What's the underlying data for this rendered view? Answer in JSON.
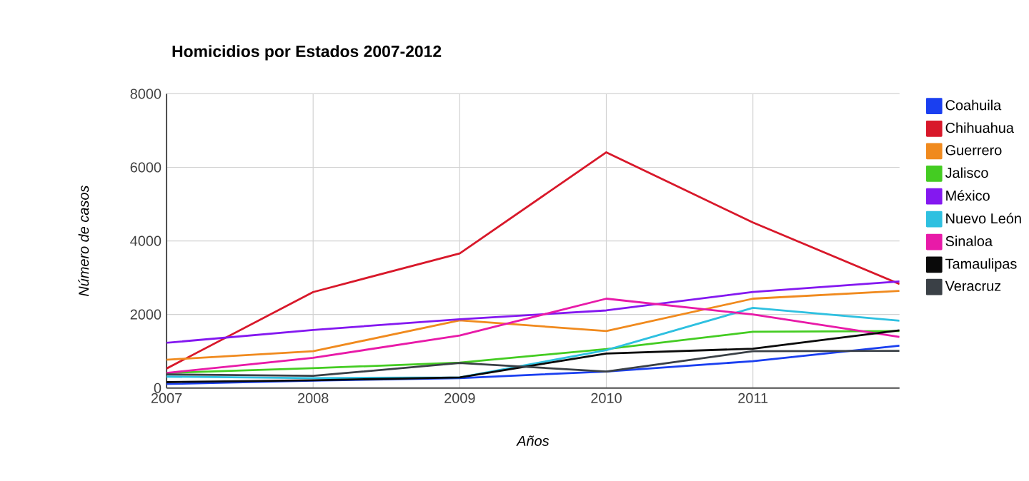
{
  "chart_data": {
    "type": "line",
    "title": "Homicidios por Estados 2007-2012",
    "xlabel": "Años",
    "ylabel": "Número de casos",
    "x": [
      2007,
      2008,
      2009,
      2010,
      2011,
      2012
    ],
    "xlim": [
      2007,
      2012
    ],
    "xticks": [
      2007,
      2008,
      2009,
      2010,
      2011
    ],
    "ylim": [
      0,
      8000
    ],
    "yticks": [
      0,
      2000,
      4000,
      6000,
      8000
    ],
    "grid": true,
    "legend": "top right",
    "series": [
      {
        "name": "Coahuila",
        "color": "#1a3ff0",
        "values": [
          110,
          200,
          270,
          450,
          730,
          1150
        ]
      },
      {
        "name": "Chihuahua",
        "color": "#d8182a",
        "values": [
          530,
          2610,
          3660,
          6410,
          4500,
          2830
        ]
      },
      {
        "name": "Guerrero",
        "color": "#f08a1e",
        "values": [
          770,
          1000,
          1840,
          1550,
          2430,
          2640
        ]
      },
      {
        "name": "Jalisco",
        "color": "#44cc22",
        "values": [
          410,
          540,
          690,
          1060,
          1530,
          1550
        ]
      },
      {
        "name": "México",
        "color": "#8418f0",
        "values": [
          1230,
          1580,
          1870,
          2110,
          2610,
          2900
        ]
      },
      {
        "name": "Nuevo León",
        "color": "#2ec0e0",
        "values": [
          310,
          270,
          290,
          1030,
          2180,
          1830
        ]
      },
      {
        "name": "Sinaloa",
        "color": "#e81aa8",
        "values": [
          410,
          820,
          1430,
          2430,
          2000,
          1390
        ]
      },
      {
        "name": "Tamaulipas",
        "color": "#0a0a0a",
        "values": [
          160,
          210,
          290,
          940,
          1070,
          1570
        ]
      },
      {
        "name": "Veracruz",
        "color": "#3a4046",
        "values": [
          370,
          330,
          680,
          450,
          1000,
          1010
        ]
      }
    ]
  }
}
